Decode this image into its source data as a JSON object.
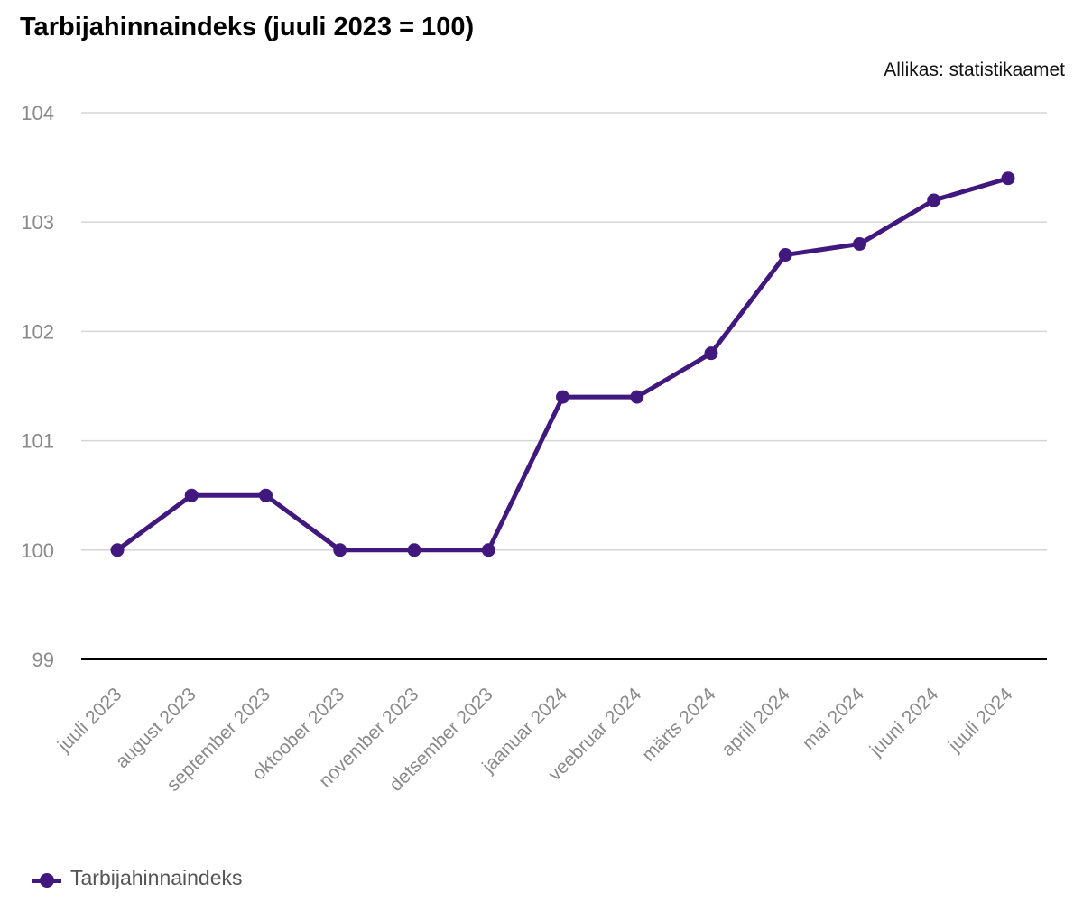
{
  "title": "Tarbijahinnaindeks (juuli 2023 = 100)",
  "source": "Allikas: statistikaamet",
  "colors": {
    "series": "#41187e",
    "grid": "#d6d6d6",
    "axis": "#000000",
    "tick_text": "#8a8a8a"
  },
  "chart_data": {
    "type": "line",
    "categories": [
      "juuli 2023",
      "august 2023",
      "september 2023",
      "oktoober 2023",
      "november 2023",
      "detsember 2023",
      "jaanuar 2024",
      "veebruar 2024",
      "märts 2024",
      "aprill 2024",
      "mai 2024",
      "juuni 2024",
      "juuli 2024"
    ],
    "series": [
      {
        "name": "Tarbijahinnaindeks",
        "values": [
          100.0,
          100.5,
          100.5,
          100.0,
          100.0,
          100.0,
          101.4,
          101.4,
          101.8,
          102.7,
          102.8,
          103.2,
          103.4
        ]
      }
    ],
    "ylim": [
      99,
      104
    ],
    "yticks": [
      99,
      100,
      101,
      102,
      103,
      104
    ],
    "grid": true,
    "legend_position": "bottom-left"
  },
  "legend": {
    "label": "Tarbijahinnaindeks"
  }
}
